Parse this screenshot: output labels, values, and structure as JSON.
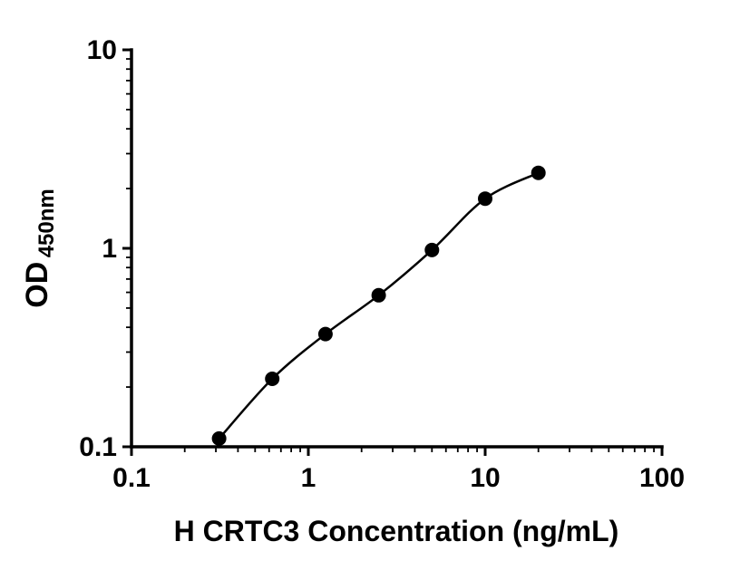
{
  "chart_data": {
    "type": "scatter",
    "title": "",
    "xlabel": "H CRTC3 Concentration (ng/mL)",
    "ylabel": "OD",
    "ylabel_subscript": "450nm",
    "xscale": "log",
    "yscale": "log",
    "xlim": [
      0.1,
      100
    ],
    "ylim": [
      0.1,
      10
    ],
    "x_tick_values": [
      0.1,
      1,
      10,
      100
    ],
    "x_tick_labels": [
      "0.1",
      "1",
      "10",
      "100"
    ],
    "y_tick_values": [
      0.1,
      1,
      10
    ],
    "y_tick_labels": [
      "0.1",
      "1",
      "10"
    ],
    "x": [
      0.313,
      0.625,
      1.25,
      2.5,
      5,
      10,
      20
    ],
    "y": [
      0.11,
      0.22,
      0.37,
      0.58,
      0.98,
      1.78,
      2.4
    ],
    "marker": "circle",
    "marker_color": "#000000",
    "line_color": "#000000",
    "axis_color": "#000000",
    "background": "#ffffff",
    "grid": false,
    "legend": false
  }
}
